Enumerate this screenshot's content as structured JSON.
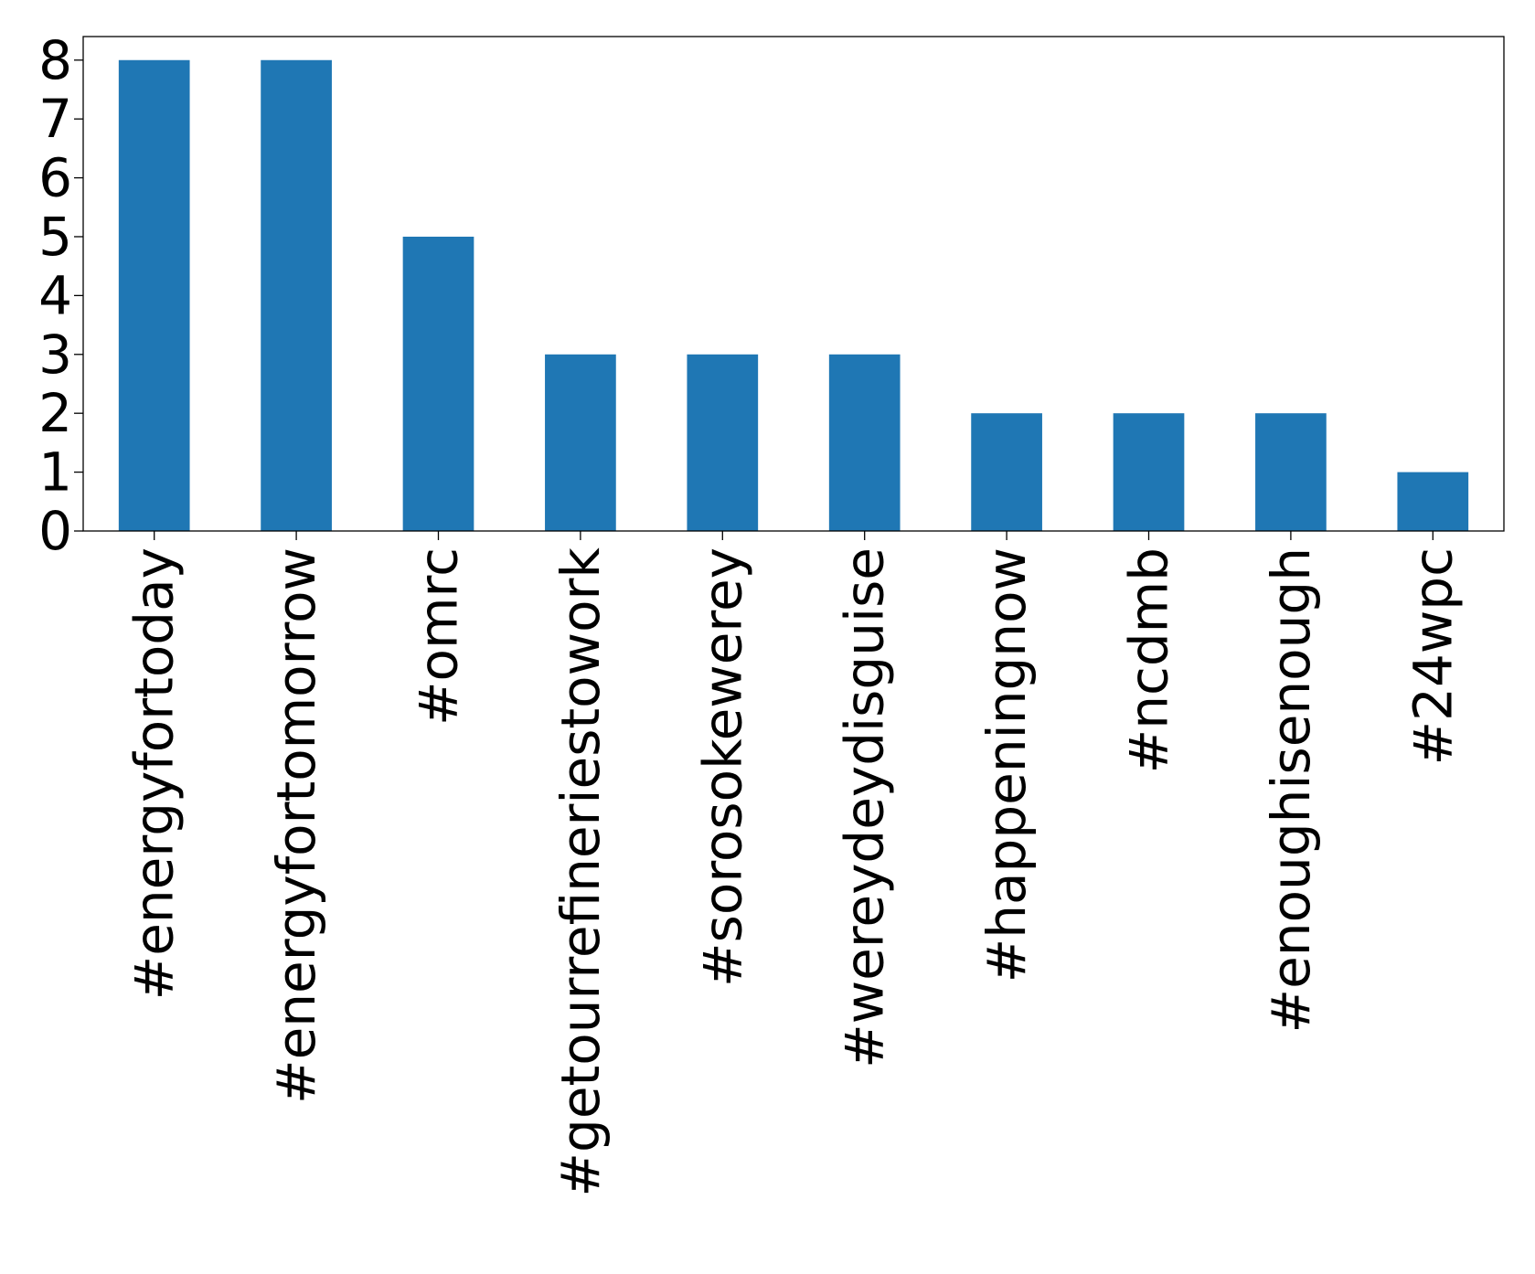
{
  "chart_data": {
    "type": "bar",
    "title": "",
    "xlabel": "",
    "ylabel": "",
    "categories": [
      "#energyfortoday",
      "#energyfortomorrow",
      "#omrc",
      "#getourrefineriestowork",
      "#sorosokewerey",
      "#wereydeydisguise",
      "#happeningnow",
      "#ncdmb",
      "#enoughisenough",
      "#24wpc"
    ],
    "values": [
      8,
      8,
      5,
      3,
      3,
      3,
      2,
      2,
      2,
      1
    ],
    "yticks": [
      0,
      1,
      2,
      3,
      4,
      5,
      6,
      7,
      8
    ],
    "ylim": [
      0,
      8.4
    ],
    "grid": false,
    "bar_color": "#1f77b4"
  }
}
